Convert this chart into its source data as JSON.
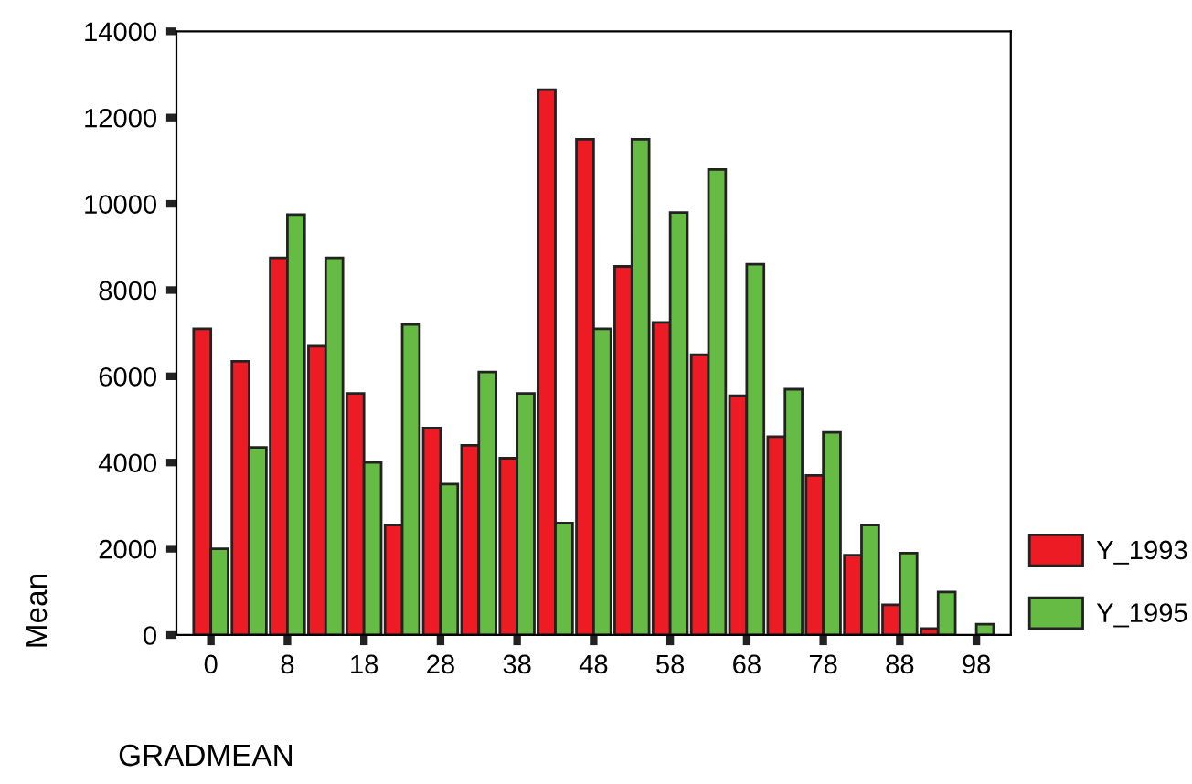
{
  "chart_data": {
    "type": "bar",
    "xlabel": "GRADMEAN",
    "ylabel": "Mean",
    "categories": [
      "0",
      null,
      "8",
      null,
      "18",
      null,
      "28",
      null,
      "38",
      null,
      "48",
      null,
      "58",
      null,
      "68",
      null,
      "78",
      null,
      "88",
      null,
      "98"
    ],
    "series": [
      {
        "name": "Y_1993",
        "color": "#ed1c24",
        "values": [
          7100,
          6350,
          8750,
          6700,
          5600,
          2550,
          4800,
          4400,
          4100,
          12650,
          11500,
          8550,
          7250,
          6500,
          5550,
          4600,
          3700,
          1850,
          700,
          150,
          null
        ]
      },
      {
        "name": "Y_1995",
        "color": "#66bb44",
        "values": [
          2000,
          4350,
          9750,
          8750,
          4000,
          7200,
          3500,
          6100,
          5600,
          2600,
          7100,
          11500,
          9800,
          10800,
          8600,
          5700,
          4700,
          2550,
          1900,
          1000,
          250
        ]
      }
    ],
    "ylim": [
      0,
      14000
    ],
    "yticks": [
      0,
      2000,
      4000,
      6000,
      8000,
      10000,
      12000,
      14000
    ],
    "grid": false,
    "legend": "right"
  }
}
